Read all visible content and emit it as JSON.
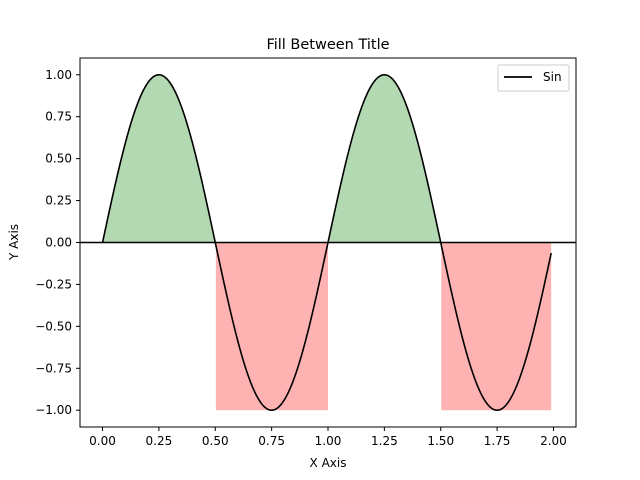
{
  "chart_data": {
    "type": "area",
    "title": "Fill Between Title",
    "xlabel": "X Axis",
    "ylabel": "Y Axis",
    "xlim": [
      -0.1,
      2.1
    ],
    "ylim": [
      -1.1,
      1.1
    ],
    "x_ticks": [
      0.0,
      0.25,
      0.5,
      0.75,
      1.0,
      1.25,
      1.5,
      1.75,
      2.0
    ],
    "x_tick_labels": [
      "0.00",
      "0.25",
      "0.50",
      "0.75",
      "1.00",
      "1.25",
      "1.50",
      "1.75",
      "2.00"
    ],
    "y_ticks": [
      1.0,
      0.75,
      0.5,
      0.25,
      0.0,
      -0.25,
      -0.5,
      -0.75,
      -1.0
    ],
    "y_tick_labels": [
      "1.00",
      "0.75",
      "0.50",
      "0.25",
      "0.00",
      "−0.25",
      "−0.50",
      "−0.75",
      "−1.00"
    ],
    "grid": false,
    "legend": {
      "position": "top-right"
    },
    "series": [
      {
        "name": "Sin",
        "function": "sin(2*pi*x)",
        "x_range": [
          0.0,
          1.99
        ],
        "color": "#000000"
      }
    ],
    "reference_lines": [
      {
        "y": 0,
        "color": "#000000"
      }
    ],
    "fills": [
      {
        "condition": "y >= 0",
        "between": [
          "sin",
          0
        ],
        "color": "#008000",
        "alpha": 0.3
      },
      {
        "condition": "y <= 0",
        "between": [
          -1,
          0
        ],
        "color": "#ff0000",
        "alpha": 0.3
      }
    ]
  }
}
